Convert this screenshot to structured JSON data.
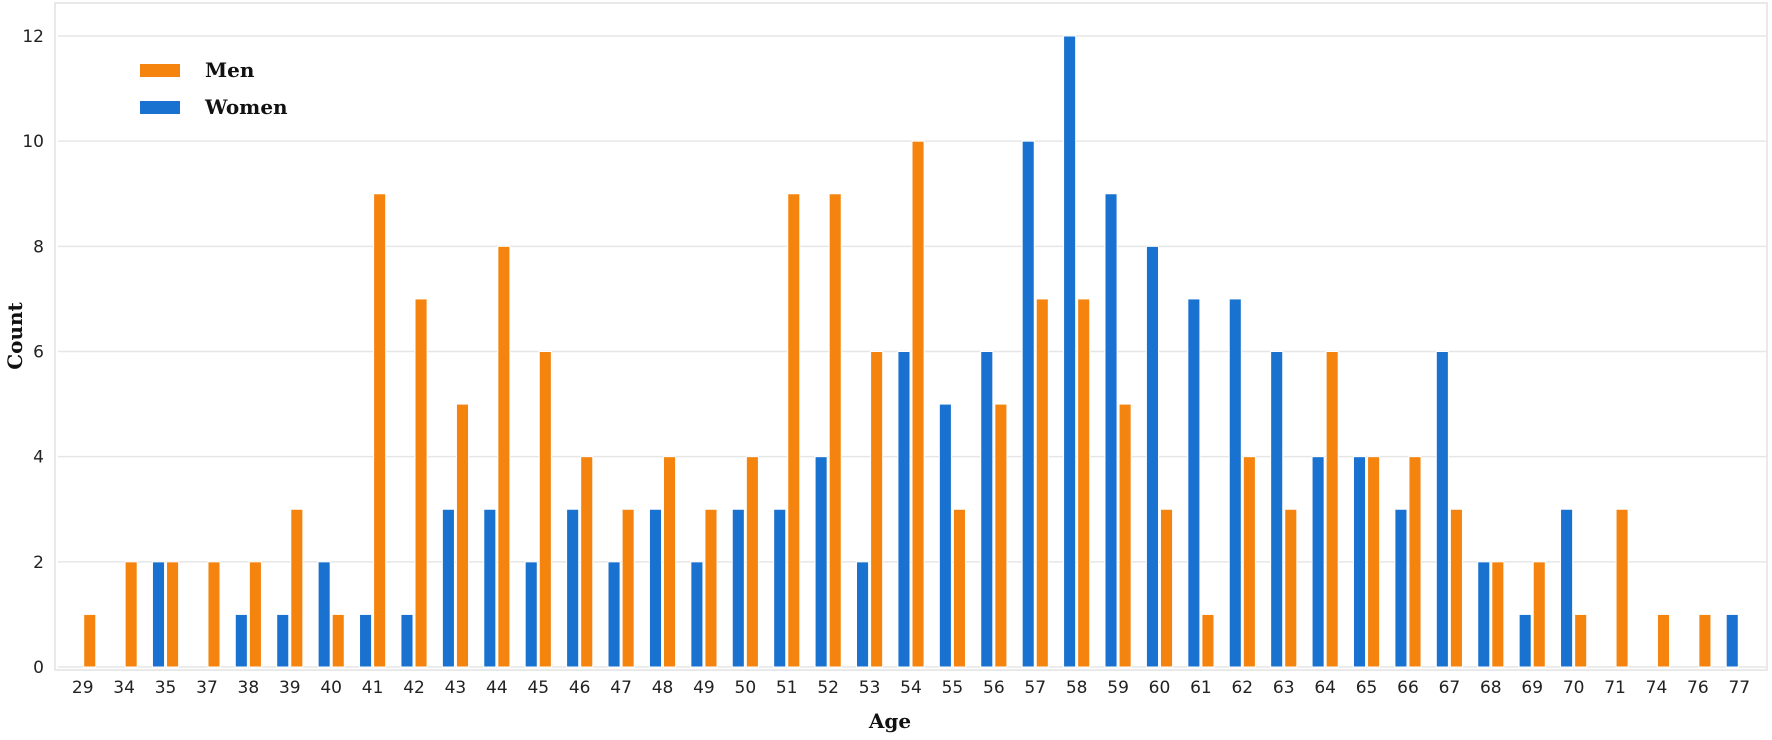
{
  "chart_data": {
    "type": "bar",
    "xlabel": "Age",
    "ylabel": "Count",
    "ylim": [
      0,
      12.5
    ],
    "yticks": [
      0,
      2,
      4,
      6,
      8,
      10,
      12
    ],
    "grid": true,
    "legend_position": "top-left",
    "categories": [
      "29",
      "34",
      "35",
      "37",
      "38",
      "39",
      "40",
      "41",
      "42",
      "43",
      "44",
      "45",
      "46",
      "47",
      "48",
      "49",
      "50",
      "51",
      "52",
      "53",
      "54",
      "55",
      "56",
      "57",
      "58",
      "59",
      "60",
      "61",
      "62",
      "63",
      "64",
      "65",
      "66",
      "67",
      "68",
      "69",
      "70",
      "71",
      "74",
      "76",
      "77"
    ],
    "series": [
      {
        "name": "Women",
        "color": "#1a72d0",
        "values": [
          0,
          0,
          2,
          0,
          1,
          1,
          2,
          1,
          1,
          3,
          3,
          2,
          3,
          2,
          3,
          2,
          3,
          3,
          4,
          2,
          6,
          5,
          6,
          10,
          12,
          9,
          8,
          7,
          7,
          6,
          4,
          4,
          3,
          6,
          2,
          1,
          3,
          0,
          0,
          0,
          1
        ]
      },
      {
        "name": "Men",
        "color": "#f5840f",
        "values": [
          1,
          2,
          2,
          2,
          2,
          3,
          1,
          9,
          7,
          5,
          8,
          6,
          4,
          3,
          4,
          3,
          4,
          9,
          9,
          6,
          10,
          3,
          5,
          7,
          7,
          5,
          3,
          1,
          4,
          3,
          6,
          4,
          4,
          3,
          2,
          2,
          1,
          3,
          1,
          1,
          0
        ]
      }
    ],
    "legend": [
      {
        "name": "Men",
        "color": "#f5840f"
      },
      {
        "name": "Women",
        "color": "#1a72d0"
      }
    ]
  }
}
